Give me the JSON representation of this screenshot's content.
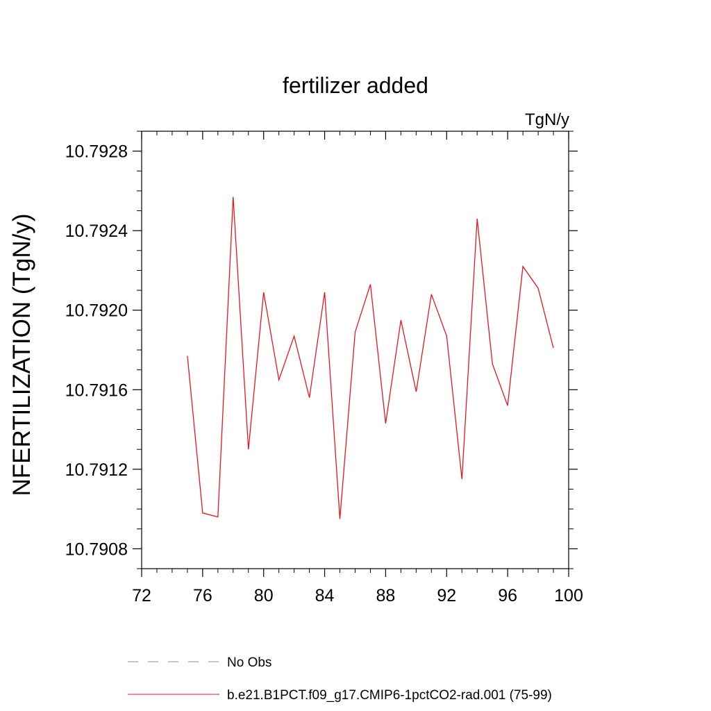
{
  "chart_data": {
    "type": "line",
    "title": "fertilizer added",
    "units_label": "TgN/y",
    "ylabel": "NFERTILIZATION  (TgN/y)",
    "xlabel": "",
    "xlim": [
      72,
      100
    ],
    "ylim": [
      10.7907,
      10.7929
    ],
    "x_ticks": [
      72,
      76,
      80,
      84,
      88,
      92,
      96,
      100
    ],
    "x_tick_labels": [
      "72",
      "76",
      "80",
      "84",
      "88",
      "92",
      "96",
      "100"
    ],
    "y_ticks": [
      10.7908,
      10.7912,
      10.7916,
      10.792,
      10.7924,
      10.7928
    ],
    "y_tick_labels": [
      "10.7908",
      "10.7912",
      "10.7916",
      "10.7920",
      "10.7924",
      "10.7928"
    ],
    "grid": false,
    "legend_placement": "bottom",
    "series": [
      {
        "name": "No Obs",
        "color": "#8a84c8",
        "dashed": true,
        "x": [],
        "y": []
      },
      {
        "name": "b.e21.B1PCT.f09_g17.CMIP6-1pctCO2-rad.001 (75-99)",
        "color": "#e8151e",
        "dashed": false,
        "x": [
          75,
          76,
          77,
          78,
          79,
          80,
          81,
          82,
          83,
          84,
          85,
          86,
          87,
          88,
          89,
          90,
          91,
          92,
          93,
          94,
          95,
          96,
          97,
          98,
          99
        ],
        "y": [
          10.79177,
          10.79098,
          10.79096,
          10.79257,
          10.7913,
          10.79209,
          10.79165,
          10.79187,
          10.79156,
          10.79209,
          10.79095,
          10.79189,
          10.79213,
          10.79143,
          10.79195,
          10.79159,
          10.79208,
          10.79187,
          10.79115,
          10.79246,
          10.79173,
          10.79152,
          10.79222,
          10.79211,
          10.79181
        ]
      }
    ]
  }
}
